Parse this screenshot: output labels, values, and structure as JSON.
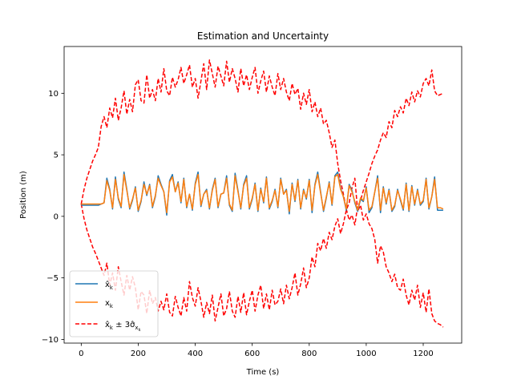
{
  "chart_data": {
    "type": "line",
    "title": "Estimation and Uncertainty",
    "xlabel": "Time (s)",
    "ylabel": "Position (m)",
    "xlim": [
      -60,
      1335
    ],
    "ylim": [
      -10.3,
      13.8
    ],
    "xticks": [
      0,
      200,
      400,
      600,
      800,
      1000,
      1200
    ],
    "yticks": [
      -10,
      -5,
      0,
      5,
      10
    ],
    "grid": false,
    "legend_position": "lower-left",
    "series": [
      {
        "name": "x̂_k",
        "legend_label": "x̂k",
        "color": "#1f77b4",
        "style": "solid",
        "x": [
          0,
          30,
          60,
          70,
          80,
          90,
          100,
          110,
          120,
          130,
          140,
          150,
          160,
          170,
          180,
          190,
          200,
          210,
          220,
          230,
          240,
          250,
          260,
          270,
          280,
          290,
          300,
          310,
          320,
          330,
          340,
          350,
          360,
          370,
          380,
          390,
          400,
          410,
          420,
          430,
          440,
          450,
          460,
          470,
          480,
          490,
          500,
          510,
          520,
          530,
          540,
          550,
          560,
          570,
          580,
          590,
          600,
          610,
          620,
          630,
          640,
          650,
          660,
          670,
          680,
          690,
          700,
          710,
          720,
          730,
          740,
          750,
          760,
          770,
          780,
          790,
          800,
          810,
          820,
          830,
          840,
          850,
          860,
          870,
          880,
          890,
          900,
          910,
          920,
          930,
          940,
          950,
          960,
          970,
          980,
          990,
          1000,
          1010,
          1020,
          1030,
          1040,
          1050,
          1060,
          1070,
          1080,
          1090,
          1100,
          1110,
          1120,
          1130,
          1140,
          1150,
          1160,
          1170,
          1180,
          1190,
          1200,
          1210,
          1220,
          1230,
          1240,
          1250,
          1260,
          1270
        ],
        "y": [
          0.9,
          0.9,
          0.9,
          1.0,
          1.1,
          3.1,
          2.2,
          0.6,
          3.2,
          1.4,
          0.7,
          3.6,
          2.2,
          0.6,
          1.3,
          2.4,
          0.4,
          1.2,
          2.8,
          1.7,
          2.6,
          0.7,
          1.6,
          3.3,
          2.6,
          2.0,
          0.1,
          2.9,
          3.4,
          2.0,
          2.8,
          1.1,
          3.1,
          0.7,
          1.8,
          0.5,
          2.7,
          3.6,
          0.8,
          1.8,
          2.2,
          0.6,
          2.2,
          3.1,
          0.7,
          1.8,
          1.9,
          3.3,
          0.9,
          0.4,
          3.5,
          2.1,
          0.6,
          2.6,
          3.3,
          0.6,
          1.4,
          2.7,
          0.4,
          2.3,
          1.1,
          3.2,
          0.6,
          1.2,
          2.2,
          0.7,
          3.1,
          1.8,
          2.2,
          0.2,
          2.7,
          1.2,
          3.0,
          0.6,
          2.2,
          1.4,
          3.0,
          0.3,
          2.6,
          3.6,
          2.0,
          0.4,
          1.5,
          2.8,
          0.9,
          3.3,
          3.6,
          2.3,
          1.6,
          0.5,
          2.6,
          2.1,
          1.1,
          0.4,
          1.4,
          1.2,
          2.4,
          0.3,
          0.7,
          2.0,
          3.3,
          0.3,
          2.4,
          1.0,
          2.2,
          0.4,
          0.8,
          2.2,
          1.3,
          0.5,
          2.7,
          0.4,
          2.5,
          0.9,
          2.2,
          0.9,
          1.2,
          3.1,
          0.6,
          1.6,
          3.2,
          0.5,
          0.5,
          0.5
        ]
      },
      {
        "name": "x_k",
        "legend_label": "xk",
        "color": "#ff7f0e",
        "style": "solid",
        "x": [
          0,
          30,
          60,
          70,
          80,
          90,
          100,
          110,
          120,
          130,
          140,
          150,
          160,
          170,
          180,
          190,
          200,
          210,
          220,
          230,
          240,
          250,
          260,
          270,
          280,
          290,
          300,
          310,
          320,
          330,
          340,
          350,
          360,
          370,
          380,
          390,
          400,
          410,
          420,
          430,
          440,
          450,
          460,
          470,
          480,
          490,
          500,
          510,
          520,
          530,
          540,
          550,
          560,
          570,
          580,
          590,
          600,
          610,
          620,
          630,
          640,
          650,
          660,
          670,
          680,
          690,
          700,
          710,
          720,
          730,
          740,
          750,
          760,
          770,
          780,
          790,
          800,
          810,
          820,
          830,
          840,
          850,
          860,
          870,
          880,
          890,
          900,
          910,
          920,
          930,
          940,
          950,
          960,
          970,
          980,
          990,
          1000,
          1010,
          1020,
          1030,
          1040,
          1050,
          1060,
          1070,
          1080,
          1090,
          1100,
          1110,
          1120,
          1130,
          1140,
          1150,
          1160,
          1170,
          1180,
          1190,
          1200,
          1210,
          1220,
          1230,
          1240,
          1250,
          1260,
          1270
        ],
        "y": [
          1.0,
          1.0,
          1.0,
          1.0,
          1.1,
          2.9,
          2.1,
          0.7,
          3.0,
          1.5,
          0.8,
          3.4,
          2.1,
          0.7,
          1.4,
          2.3,
          0.5,
          1.3,
          2.6,
          1.8,
          2.5,
          0.8,
          1.7,
          3.1,
          2.5,
          2.0,
          0.3,
          2.8,
          3.2,
          2.0,
          2.7,
          1.2,
          3.0,
          0.8,
          1.8,
          0.6,
          2.6,
          3.4,
          0.9,
          1.8,
          2.1,
          0.7,
          2.1,
          3.0,
          0.8,
          1.8,
          1.9,
          3.1,
          1.0,
          0.5,
          3.3,
          2.0,
          0.7,
          2.5,
          3.1,
          0.7,
          1.5,
          2.6,
          0.5,
          2.2,
          1.2,
          3.1,
          0.7,
          1.3,
          2.1,
          0.8,
          3.0,
          1.8,
          2.1,
          0.4,
          2.6,
          1.3,
          2.9,
          0.7,
          2.1,
          1.5,
          2.9,
          0.5,
          2.5,
          3.4,
          1.9,
          0.5,
          1.6,
          2.7,
          1.0,
          3.2,
          3.4,
          2.2,
          1.6,
          0.6,
          2.5,
          2.0,
          1.2,
          0.5,
          1.5,
          1.3,
          2.3,
          0.5,
          0.8,
          2.0,
          3.1,
          0.5,
          2.3,
          1.1,
          2.1,
          0.5,
          0.9,
          2.1,
          1.4,
          0.6,
          2.6,
          0.5,
          2.4,
          1.0,
          2.1,
          1.0,
          1.3,
          3.0,
          0.7,
          1.6,
          3.0,
          0.7,
          0.7,
          0.6
        ]
      },
      {
        "name": "x̂_k ± 3σ̂_x_k",
        "legend_label": "x̂k ± 3σ̂xk",
        "color": "#ff0000",
        "style": "dashed",
        "upper": {
          "x": [
            0,
            10,
            20,
            30,
            40,
            50,
            60,
            70,
            80,
            90,
            100,
            110,
            120,
            130,
            140,
            150,
            160,
            170,
            180,
            190,
            200,
            210,
            220,
            230,
            240,
            250,
            260,
            270,
            280,
            290,
            300,
            310,
            320,
            330,
            340,
            350,
            360,
            370,
            380,
            390,
            400,
            410,
            420,
            430,
            440,
            450,
            460,
            470,
            480,
            490,
            500,
            510,
            520,
            530,
            540,
            550,
            560,
            570,
            580,
            590,
            600,
            610,
            620,
            630,
            640,
            650,
            660,
            670,
            680,
            690,
            700,
            710,
            720,
            730,
            740,
            750,
            760,
            770,
            780,
            790,
            800,
            810,
            820,
            830,
            840,
            850,
            860,
            870,
            880,
            890,
            900,
            910,
            920,
            930,
            940,
            950,
            960,
            970,
            980,
            990,
            1000,
            1010,
            1020,
            1030,
            1040,
            1050,
            1060,
            1070,
            1080,
            1090,
            1100,
            1110,
            1120,
            1130,
            1140,
            1150,
            1160,
            1170,
            1180,
            1190,
            1200,
            1210,
            1220,
            1230,
            1240,
            1250,
            1260,
            1270
          ],
          "y": [
            1.0,
            2.2,
            3.1,
            3.8,
            4.5,
            5.0,
            5.6,
            7.3,
            8.1,
            7.2,
            8.8,
            8.0,
            9.6,
            7.8,
            8.8,
            10.2,
            8.3,
            9.5,
            8.5,
            10.7,
            11.1,
            9.4,
            9.2,
            11.5,
            9.6,
            10.3,
            9.4,
            11.2,
            10.1,
            12.0,
            10.2,
            9.8,
            11.3,
            10.5,
            11.1,
            12.1,
            10.8,
            11.5,
            12.3,
            10.5,
            11.2,
            9.6,
            11.0,
            12.4,
            10.3,
            12.7,
            11.6,
            10.5,
            12.2,
            11.4,
            10.6,
            12.6,
            10.9,
            12.0,
            11.2,
            10.1,
            12.0,
            10.6,
            11.5,
            10.3,
            11.3,
            12.1,
            10.0,
            11.0,
            11.8,
            10.1,
            11.4,
            10.5,
            9.8,
            11.6,
            10.3,
            11.2,
            10.1,
            9.4,
            10.8,
            9.9,
            10.4,
            8.7,
            10.0,
            9.1,
            10.3,
            8.5,
            9.3,
            8.1,
            8.8,
            7.5,
            7.8,
            6.8,
            5.6,
            6.2,
            4.3,
            2.9,
            1.8,
            0.6,
            -0.3,
            0.1,
            -0.7,
            0.8,
            1.3,
            2.1,
            2.8,
            3.5,
            4.3,
            4.9,
            5.4,
            6.2,
            6.8,
            6.4,
            7.7,
            7.2,
            8.6,
            8.1,
            8.9,
            8.4,
            9.6,
            9.0,
            10.1,
            9.3,
            10.2,
            9.7,
            10.8,
            11.2,
            10.6,
            11.9,
            10.2,
            9.8,
            9.9,
            10.0
          ]
        },
        "lower": {
          "x": [
            0,
            10,
            20,
            30,
            40,
            50,
            60,
            70,
            80,
            90,
            100,
            110,
            120,
            130,
            140,
            150,
            160,
            170,
            180,
            190,
            200,
            210,
            220,
            230,
            240,
            250,
            260,
            270,
            280,
            290,
            300,
            310,
            320,
            330,
            340,
            350,
            360,
            370,
            380,
            390,
            400,
            410,
            420,
            430,
            440,
            450,
            460,
            470,
            480,
            490,
            500,
            510,
            520,
            530,
            540,
            550,
            560,
            570,
            580,
            590,
            600,
            610,
            620,
            630,
            640,
            650,
            660,
            670,
            680,
            690,
            700,
            710,
            720,
            730,
            740,
            750,
            760,
            770,
            780,
            790,
            800,
            810,
            820,
            830,
            840,
            850,
            860,
            870,
            880,
            890,
            900,
            910,
            920,
            930,
            940,
            950,
            960,
            970,
            980,
            990,
            1000,
            1010,
            1020,
            1030,
            1040,
            1050,
            1060,
            1070,
            1080,
            1090,
            1100,
            1110,
            1120,
            1130,
            1140,
            1150,
            1160,
            1170,
            1180,
            1190,
            1200,
            1210,
            1220,
            1230,
            1240,
            1250,
            1260,
            1270
          ],
          "y": [
            1.0,
            -0.2,
            -1.1,
            -1.8,
            -2.5,
            -3.0,
            -3.6,
            -4.2,
            -4.8,
            -3.8,
            -5.6,
            -4.6,
            -6.0,
            -4.1,
            -5.3,
            -6.4,
            -4.8,
            -6.0,
            -4.9,
            -5.8,
            -7.6,
            -6.1,
            -6.4,
            -7.9,
            -6.0,
            -7.1,
            -6.6,
            -7.7,
            -6.9,
            -7.6,
            -6.3,
            -7.8,
            -8.1,
            -6.5,
            -7.4,
            -8.1,
            -6.6,
            -7.7,
            -5.3,
            -6.6,
            -7.3,
            -5.8,
            -6.9,
            -8.2,
            -7.0,
            -7.9,
            -6.4,
            -8.5,
            -7.4,
            -6.3,
            -8.1,
            -7.5,
            -6.1,
            -7.7,
            -8.2,
            -6.5,
            -7.8,
            -6.2,
            -8.0,
            -6.9,
            -6.0,
            -7.7,
            -6.4,
            -5.6,
            -7.5,
            -6.3,
            -7.6,
            -6.0,
            -7.2,
            -6.9,
            -5.9,
            -7.1,
            -5.6,
            -6.7,
            -5.8,
            -4.6,
            -6.4,
            -5.5,
            -4.2,
            -5.8,
            -5.0,
            -3.3,
            -4.1,
            -2.2,
            -2.8,
            -1.8,
            -2.6,
            -1.3,
            -1.9,
            -0.8,
            -0.2,
            -1.4,
            -0.6,
            0.5,
            1.1,
            2.3,
            3.1,
            0.4,
            0.9,
            -0.3,
            0.2,
            -0.6,
            -1.0,
            -1.9,
            -3.8,
            -2.4,
            -2.9,
            -4.1,
            -4.6,
            -5.3,
            -4.7,
            -5.8,
            -6.0,
            -5.1,
            -6.4,
            -7.2,
            -6.0,
            -6.8,
            -5.6,
            -7.4,
            -6.2,
            -7.8,
            -5.9,
            -7.9,
            -8.5,
            -8.7,
            -8.8,
            -9.0
          ]
        }
      }
    ]
  }
}
